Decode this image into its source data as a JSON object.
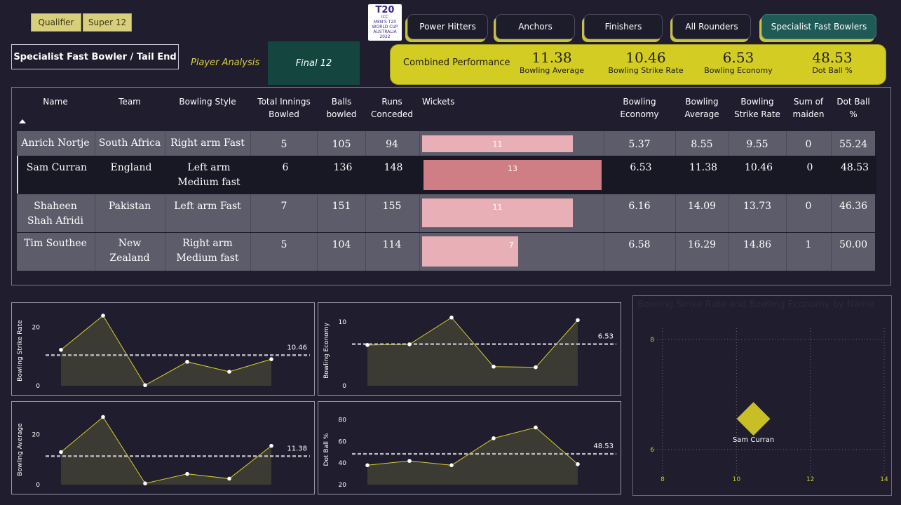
{
  "filters": [
    "Qualifier",
    "Super 12"
  ],
  "logo": {
    "top": "T20",
    "lines": [
      "ICC",
      "MEN'S T20",
      "WORLD CUP",
      "AUSTRALIA 2022"
    ]
  },
  "nav": [
    "Power Hitters",
    "Anchors",
    "Finishers",
    "All Rounders",
    "Specialist Fast Bowlers"
  ],
  "page_title": "Specialist Fast Bowler / Tail End",
  "player_analysis": "Player Analysis",
  "final_label": "Final 12",
  "combined": {
    "label": "Combined Performance",
    "kpis": [
      {
        "value": "11.38",
        "label": "Bowling Average"
      },
      {
        "value": "10.46",
        "label": "Bowling Strike Rate"
      },
      {
        "value": "6.53",
        "label": "Bowling Economy"
      },
      {
        "value": "48.53",
        "label": "Dot Ball %"
      }
    ]
  },
  "table": {
    "headers": [
      "Name",
      "Team",
      "Bowling Style",
      "Total Innings Bowled",
      "Balls bowled",
      "Runs Conceded",
      "Wickets",
      "Bowling Economy",
      "Bowling Average",
      "Bowling Strike Rate",
      "Sum of maiden",
      "Dot Ball %"
    ],
    "max_wickets": 13,
    "rows": [
      {
        "name": "Anrich Nortje",
        "team": "South Africa",
        "style": "Right arm Fast",
        "innings": "5",
        "balls": "105",
        "runs": "94",
        "wickets": 11,
        "wickets_label": "11",
        "economy": "5.37",
        "average": "8.55",
        "strike": "9.55",
        "maiden": "0",
        "dot": "55.24"
      },
      {
        "name": "Sam Curran",
        "team": "England",
        "style": "Left arm Medium fast",
        "innings": "6",
        "balls": "136",
        "runs": "148",
        "wickets": 13,
        "wickets_label": "13",
        "economy": "6.53",
        "average": "11.38",
        "strike": "10.46",
        "maiden": "0",
        "dot": "48.53"
      },
      {
        "name": "Shaheen Shah Afridi",
        "team": "Pakistan",
        "style": "Left arm Fast",
        "innings": "7",
        "balls": "151",
        "runs": "155",
        "wickets": 11,
        "wickets_label": "11",
        "economy": "6.16",
        "average": "14.09",
        "strike": "13.73",
        "maiden": "0",
        "dot": "46.36"
      },
      {
        "name": "Tim Southee",
        "team": "New Zealand",
        "style": "Right arm Medium fast",
        "innings": "5",
        "balls": "104",
        "runs": "114",
        "wickets": 7,
        "wickets_label": "7",
        "economy": "6.58",
        "average": "16.29",
        "strike": "14.86",
        "maiden": "1",
        "dot": "50.00"
      }
    ]
  },
  "chart_data": [
    {
      "type": "area",
      "ylabel": "Bowling Strike Rate",
      "yticks": [
        "0",
        "20"
      ],
      "ylim": [
        0,
        24
      ],
      "values": [
        12.3,
        24,
        0.2,
        8.2,
        4.8,
        9.1
      ],
      "ref": 10.46,
      "ref_label": "10.46"
    },
    {
      "type": "area",
      "ylabel": "Bowling Economy",
      "yticks": [
        "0",
        "10"
      ],
      "ylim": [
        0,
        11
      ],
      "values": [
        6.4,
        6.5,
        10.7,
        3,
        2.9,
        10.3
      ],
      "ref": 6.53,
      "ref_label": "6.53"
    },
    {
      "type": "area",
      "ylabel": "Bowling Average",
      "yticks": [
        "0",
        "20"
      ],
      "ylim": [
        0,
        28
      ],
      "values": [
        13,
        27,
        0.5,
        4.3,
        2.4,
        15.5
      ],
      "ref": 11.38,
      "ref_label": "11.38"
    },
    {
      "type": "area",
      "ylabel": "Dot Ball %",
      "yticks": [
        "20",
        "40",
        "60",
        "80"
      ],
      "ylim": [
        20,
        85
      ],
      "values": [
        38,
        42,
        38,
        63,
        73,
        39
      ],
      "ref": 48.53,
      "ref_label": "48.53"
    },
    {
      "type": "scatter",
      "title": "Bowling Strike Rate and Bowling Economy by Name",
      "xticks": [
        "8",
        "10",
        "12",
        "14"
      ],
      "yticks": [
        "6",
        "8"
      ],
      "xlim": [
        8,
        14
      ],
      "ylim": [
        5.5,
        8.1
      ],
      "points": [
        {
          "x": 10.46,
          "y": 6.53,
          "label": "Sam Curran"
        }
      ]
    }
  ],
  "colors": {
    "accent": "#d3cc22",
    "bar": "#e8b0b6",
    "bar_selected": "#cf7e85",
    "line": "#d9cf2a"
  }
}
